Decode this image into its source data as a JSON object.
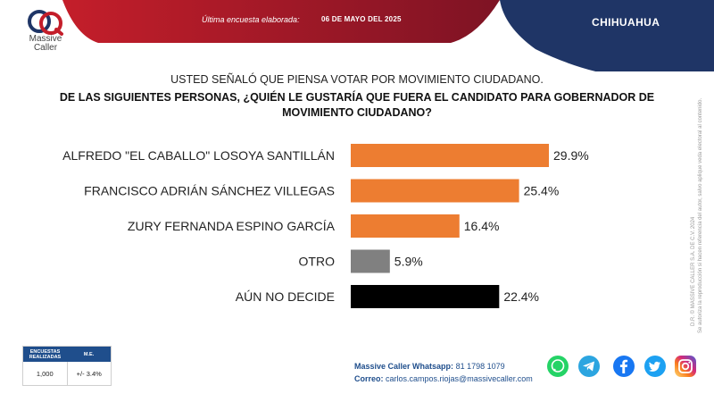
{
  "header": {
    "brand_line1": "Massive",
    "brand_line2": "Caller",
    "last_survey_label": "Última encuesta elaborada:",
    "last_survey_date": "06 DE MAYO DEL 2025",
    "state": "CHIHUAHUA",
    "colors": {
      "red": "#a8182a",
      "navy": "#1f3566"
    }
  },
  "question": {
    "line1": "USTED SEÑALÓ QUE PIENSA VOTAR POR MOVIMIENTO CIUDADANO.",
    "line2": "DE LAS SIGUIENTES PERSONAS, ¿QUIÉN LE GUSTARÍA QUE FUERA EL CANDIDATO PARA GOBERNADOR DE MOVIMIENTO CIUDADANO?"
  },
  "chart_data": {
    "type": "bar",
    "orientation": "horizontal",
    "categories": [
      "ALFREDO \"EL CABALLO\" LOSOYA SANTILLÁN",
      "FRANCISCO ADRIÁN SÁNCHEZ VILLEGAS",
      "ZURY FERNANDA ESPINO GARCÍA",
      "OTRO",
      "AÚN NO DECIDE"
    ],
    "values": [
      29.9,
      25.4,
      16.4,
      5.9,
      22.4
    ],
    "value_labels": [
      "29.9%",
      "25.4%",
      "16.4%",
      "5.9%",
      "22.4%"
    ],
    "colors": [
      "#ed7d31",
      "#ed7d31",
      "#ed7d31",
      "#808080",
      "#000000"
    ],
    "xlim": [
      0,
      30
    ],
    "grid": false,
    "title": "",
    "xlabel": "",
    "ylabel": ""
  },
  "side_note": {
    "line1": "D.R. © MASSIVE CALLER S.A. DE C.V. 2024",
    "line2": "Se autoriza la reproducción si hacen referencia del autor, salvo aplique veda electoral al contenido."
  },
  "survey_table": {
    "col1_header": "ENCUESTAS REALIZADAS",
    "col2_header": "M.E.",
    "col1_value": "1,000",
    "col2_value": "+/- 3.4%"
  },
  "footer": {
    "whatsapp_label": "Massive Caller Whatsapp:",
    "whatsapp_value": "81 1798 1079",
    "email_label": "Correo:",
    "email_value": "carlos.campos.riojas@massivecaller.com"
  },
  "social_icons": [
    "whatsapp-icon",
    "telegram-icon",
    "facebook-icon",
    "twitter-icon",
    "instagram-icon"
  ]
}
